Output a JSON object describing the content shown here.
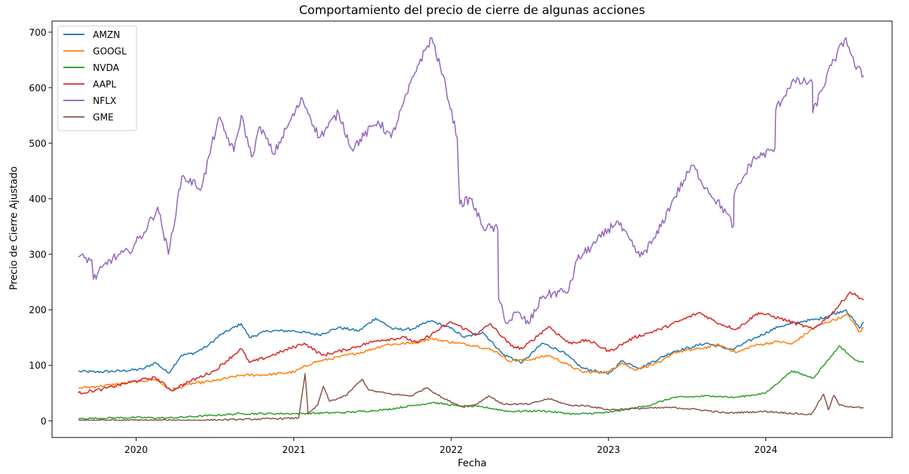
{
  "chart_data": {
    "type": "line",
    "title": "Comportamiento del precio de cierre de algunas acciones",
    "xlabel": "Fecha",
    "ylabel": "Precio de Cierre Ajustado",
    "xlim": [
      "2019-06-20",
      "2024-10-20"
    ],
    "ylim": [
      -30,
      720
    ],
    "xticks": [
      {
        "date": "2020-01-01",
        "label": "2020"
      },
      {
        "date": "2021-01-01",
        "label": "2021"
      },
      {
        "date": "2022-01-01",
        "label": "2022"
      },
      {
        "date": "2023-01-01",
        "label": "2023"
      },
      {
        "date": "2024-01-01",
        "label": "2024"
      }
    ],
    "yticks": [
      0,
      100,
      200,
      300,
      400,
      500,
      600,
      700
    ],
    "grid": false,
    "legend_position": "top-left",
    "series": [
      {
        "name": "AMZN",
        "color": "#1f77b4",
        "points": [
          [
            "2019-08-20",
            89
          ],
          [
            "2019-10-01",
            88
          ],
          [
            "2019-12-01",
            90
          ],
          [
            "2020-01-15",
            93
          ],
          [
            "2020-02-15",
            105
          ],
          [
            "2020-03-16",
            86
          ],
          [
            "2020-04-15",
            118
          ],
          [
            "2020-05-15",
            122
          ],
          [
            "2020-06-15",
            135
          ],
          [
            "2020-07-15",
            155
          ],
          [
            "2020-09-01",
            175
          ],
          [
            "2020-09-20",
            150
          ],
          [
            "2020-11-01",
            162
          ],
          [
            "2021-01-01",
            162
          ],
          [
            "2021-03-01",
            155
          ],
          [
            "2021-04-15",
            168
          ],
          [
            "2021-06-01",
            162
          ],
          [
            "2021-07-10",
            185
          ],
          [
            "2021-08-20",
            165
          ],
          [
            "2021-10-01",
            165
          ],
          [
            "2021-11-15",
            180
          ],
          [
            "2022-01-05",
            165
          ],
          [
            "2022-02-01",
            150
          ],
          [
            "2022-03-15",
            160
          ],
          [
            "2022-05-01",
            120
          ],
          [
            "2022-06-15",
            105
          ],
          [
            "2022-08-01",
            140
          ],
          [
            "2022-09-15",
            125
          ],
          [
            "2022-11-01",
            95
          ],
          [
            "2022-12-31",
            84
          ],
          [
            "2023-02-01",
            108
          ],
          [
            "2023-03-15",
            95
          ],
          [
            "2023-06-01",
            125
          ],
          [
            "2023-07-15",
            133
          ],
          [
            "2023-08-15",
            140
          ],
          [
            "2023-10-15",
            128
          ],
          [
            "2023-12-01",
            147
          ],
          [
            "2024-02-01",
            170
          ],
          [
            "2024-04-01",
            180
          ],
          [
            "2024-05-01",
            183
          ],
          [
            "2024-07-05",
            200
          ],
          [
            "2024-08-05",
            167
          ],
          [
            "2024-08-15",
            178
          ]
        ]
      },
      {
        "name": "GOOGL",
        "color": "#ff7f0e",
        "points": [
          [
            "2019-08-20",
            59
          ],
          [
            "2019-10-01",
            62
          ],
          [
            "2019-12-01",
            67
          ],
          [
            "2020-02-15",
            75
          ],
          [
            "2020-03-23",
            54
          ],
          [
            "2020-05-01",
            66
          ],
          [
            "2020-07-01",
            72
          ],
          [
            "2020-09-01",
            82
          ],
          [
            "2020-11-01",
            83
          ],
          [
            "2021-01-01",
            88
          ],
          [
            "2021-02-15",
            105
          ],
          [
            "2021-04-15",
            115
          ],
          [
            "2021-06-15",
            125
          ],
          [
            "2021-08-01",
            137
          ],
          [
            "2021-10-01",
            140
          ],
          [
            "2021-11-15",
            148
          ],
          [
            "2022-01-15",
            140
          ],
          [
            "2022-03-01",
            135
          ],
          [
            "2022-04-15",
            125
          ],
          [
            "2022-05-15",
            108
          ],
          [
            "2022-07-01",
            110
          ],
          [
            "2022-08-15",
            118
          ],
          [
            "2022-10-01",
            100
          ],
          [
            "2022-11-01",
            88
          ],
          [
            "2023-01-01",
            88
          ],
          [
            "2023-02-01",
            105
          ],
          [
            "2023-03-01",
            92
          ],
          [
            "2023-05-01",
            105
          ],
          [
            "2023-06-01",
            123
          ],
          [
            "2023-08-01",
            130
          ],
          [
            "2023-09-15",
            137
          ],
          [
            "2023-10-26",
            123
          ],
          [
            "2023-12-01",
            135
          ],
          [
            "2024-02-01",
            143
          ],
          [
            "2024-03-01",
            138
          ],
          [
            "2024-04-26",
            170
          ],
          [
            "2024-07-10",
            191
          ],
          [
            "2024-08-05",
            160
          ],
          [
            "2024-08-15",
            168
          ]
        ]
      },
      {
        "name": "NVDA",
        "color": "#2ca02c",
        "points": [
          [
            "2019-08-20",
            4
          ],
          [
            "2020-01-01",
            6
          ],
          [
            "2020-03-16",
            5
          ],
          [
            "2020-07-01",
            10
          ],
          [
            "2020-09-01",
            13
          ],
          [
            "2021-01-01",
            13
          ],
          [
            "2021-05-01",
            15
          ],
          [
            "2021-08-01",
            20
          ],
          [
            "2021-11-20",
            33
          ],
          [
            "2022-01-15",
            27
          ],
          [
            "2022-03-15",
            25
          ],
          [
            "2022-05-15",
            17
          ],
          [
            "2022-08-01",
            18
          ],
          [
            "2022-10-15",
            12
          ],
          [
            "2023-01-01",
            15
          ],
          [
            "2023-04-01",
            27
          ],
          [
            "2023-06-01",
            42
          ],
          [
            "2023-09-01",
            45
          ],
          [
            "2023-10-20",
            42
          ],
          [
            "2024-01-01",
            50
          ],
          [
            "2024-03-01",
            90
          ],
          [
            "2024-04-20",
            77
          ],
          [
            "2024-06-20",
            135
          ],
          [
            "2024-07-25",
            110
          ],
          [
            "2024-08-15",
            105
          ]
        ]
      },
      {
        "name": "AAPL",
        "color": "#d62728",
        "points": [
          [
            "2019-08-20",
            50
          ],
          [
            "2019-10-15",
            57
          ],
          [
            "2019-12-31",
            72
          ],
          [
            "2020-02-15",
            78
          ],
          [
            "2020-03-23",
            55
          ],
          [
            "2020-05-01",
            70
          ],
          [
            "2020-07-01",
            90
          ],
          [
            "2020-09-01",
            130
          ],
          [
            "2020-09-20",
            105
          ],
          [
            "2020-11-01",
            115
          ],
          [
            "2021-01-25",
            140
          ],
          [
            "2021-03-08",
            118
          ],
          [
            "2021-05-01",
            128
          ],
          [
            "2021-07-15",
            145
          ],
          [
            "2021-09-15",
            150
          ],
          [
            "2021-10-15",
            140
          ],
          [
            "2022-01-01",
            178
          ],
          [
            "2022-03-01",
            155
          ],
          [
            "2022-04-01",
            175
          ],
          [
            "2022-05-20",
            135
          ],
          [
            "2022-06-15",
            130
          ],
          [
            "2022-08-15",
            170
          ],
          [
            "2022-10-01",
            140
          ],
          [
            "2022-11-15",
            145
          ],
          [
            "2023-01-03",
            125
          ],
          [
            "2023-03-01",
            150
          ],
          [
            "2023-05-01",
            165
          ],
          [
            "2023-07-31",
            195
          ],
          [
            "2023-09-15",
            175
          ],
          [
            "2023-10-25",
            165
          ],
          [
            "2023-12-15",
            195
          ],
          [
            "2024-02-01",
            185
          ],
          [
            "2024-04-20",
            165
          ],
          [
            "2024-06-01",
            192
          ],
          [
            "2024-07-15",
            232
          ],
          [
            "2024-08-15",
            218
          ]
        ]
      },
      {
        "name": "NFLX",
        "color": "#9467bd",
        "points": [
          [
            "2019-08-20",
            295
          ],
          [
            "2019-09-20",
            290
          ],
          [
            "2019-09-24",
            255
          ],
          [
            "2019-11-01",
            290
          ],
          [
            "2019-12-15",
            305
          ],
          [
            "2020-01-20",
            340
          ],
          [
            "2020-02-20",
            385
          ],
          [
            "2020-03-16",
            300
          ],
          [
            "2020-04-16",
            440
          ],
          [
            "2020-06-01",
            420
          ],
          [
            "2020-07-10",
            545
          ],
          [
            "2020-08-15",
            485
          ],
          [
            "2020-09-01",
            550
          ],
          [
            "2020-09-25",
            475
          ],
          [
            "2020-10-15",
            530
          ],
          [
            "2020-11-15",
            480
          ],
          [
            "2020-12-20",
            535
          ],
          [
            "2021-01-21",
            580
          ],
          [
            "2021-03-01",
            510
          ],
          [
            "2021-04-15",
            555
          ],
          [
            "2021-05-15",
            490
          ],
          [
            "2021-07-15",
            540
          ],
          [
            "2021-08-15",
            510
          ],
          [
            "2021-10-15",
            640
          ],
          [
            "2021-11-17",
            690
          ],
          [
            "2021-12-20",
            600
          ],
          [
            "2022-01-15",
            510
          ],
          [
            "2022-01-21",
            390
          ],
          [
            "2022-02-15",
            400
          ],
          [
            "2022-03-15",
            350
          ],
          [
            "2022-04-19",
            345
          ],
          [
            "2022-04-21",
            220
          ],
          [
            "2022-05-11",
            175
          ],
          [
            "2022-06-01",
            195
          ],
          [
            "2022-06-30",
            175
          ],
          [
            "2022-08-01",
            225
          ],
          [
            "2022-10-01",
            235
          ],
          [
            "2022-10-20",
            290
          ],
          [
            "2022-12-01",
            320
          ],
          [
            "2023-01-20",
            360
          ],
          [
            "2023-03-15",
            295
          ],
          [
            "2023-04-20",
            330
          ],
          [
            "2023-06-01",
            400
          ],
          [
            "2023-07-15",
            460
          ],
          [
            "2023-08-15",
            420
          ],
          [
            "2023-10-01",
            375
          ],
          [
            "2023-10-18",
            350
          ],
          [
            "2023-10-19",
            405
          ],
          [
            "2023-12-01",
            470
          ],
          [
            "2024-01-22",
            490
          ],
          [
            "2024-01-24",
            560
          ],
          [
            "2024-03-01",
            610
          ],
          [
            "2024-04-18",
            610
          ],
          [
            "2024-04-19",
            555
          ],
          [
            "2024-06-01",
            640
          ],
          [
            "2024-07-05",
            690
          ],
          [
            "2024-07-25",
            640
          ],
          [
            "2024-08-15",
            622
          ]
        ]
      },
      {
        "name": "GME",
        "color": "#8c564b",
        "points": [
          [
            "2019-08-20",
            1
          ],
          [
            "2020-06-01",
            1
          ],
          [
            "2020-10-01",
            3
          ],
          [
            "2021-01-12",
            5
          ],
          [
            "2021-01-27",
            85
          ],
          [
            "2021-02-03",
            12
          ],
          [
            "2021-02-25",
            28
          ],
          [
            "2021-03-10",
            62
          ],
          [
            "2021-03-25",
            35
          ],
          [
            "2021-05-01",
            45
          ],
          [
            "2021-06-08",
            75
          ],
          [
            "2021-06-25",
            55
          ],
          [
            "2021-08-15",
            48
          ],
          [
            "2021-10-01",
            45
          ],
          [
            "2021-11-05",
            60
          ],
          [
            "2021-12-15",
            40
          ],
          [
            "2022-01-28",
            25
          ],
          [
            "2022-03-01",
            30
          ],
          [
            "2022-03-29",
            45
          ],
          [
            "2022-05-01",
            30
          ],
          [
            "2022-07-01",
            30
          ],
          [
            "2022-08-15",
            40
          ],
          [
            "2022-10-01",
            28
          ],
          [
            "2022-11-15",
            27
          ],
          [
            "2023-01-01",
            20
          ],
          [
            "2023-03-01",
            22
          ],
          [
            "2023-06-01",
            24
          ],
          [
            "2023-08-01",
            20
          ],
          [
            "2023-10-01",
            14
          ],
          [
            "2024-01-01",
            17
          ],
          [
            "2024-04-15",
            11
          ],
          [
            "2024-05-14",
            48
          ],
          [
            "2024-05-25",
            20
          ],
          [
            "2024-06-07",
            46
          ],
          [
            "2024-06-20",
            28
          ],
          [
            "2024-08-15",
            23
          ]
        ]
      }
    ]
  }
}
